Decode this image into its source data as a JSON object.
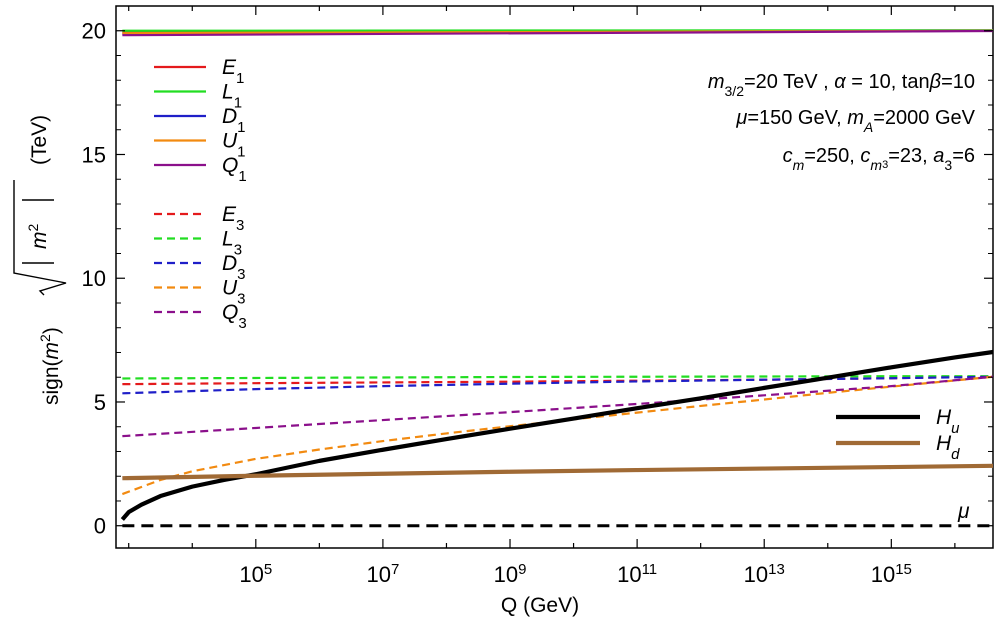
{
  "chart_data": {
    "type": "line",
    "xlabel": "Q (GeV)",
    "ylabel": {
      "prefix": "sign(",
      "m": "m",
      "sup": "2",
      "close": ")",
      "root_inner_m": "m",
      "root_inner_sup": "2",
      "unit": "(TeV)"
    },
    "x_scale": "log10",
    "x_tick_exponents": [
      5,
      7,
      9,
      11,
      13,
      15
    ],
    "x_tick_base": "10",
    "xlim_log10": [
      2.8,
      16.6
    ],
    "ylim": [
      -0.9,
      21
    ],
    "y_ticks": [
      0,
      5,
      10,
      15,
      20
    ],
    "annotation": {
      "line1": {
        "m": "m",
        "msub": "3/2",
        "rest1": "=20 TeV , ",
        "alpha": "α",
        "rest2": " = 10, tan",
        "beta": "β",
        "rest3": "=10"
      },
      "line2": {
        "mu": "μ",
        "rest1": "=150 GeV, ",
        "m": "m",
        "msub": "A",
        "rest2": "=2000 GeV"
      },
      "line3": {
        "c1": "c",
        "c1sub": "m",
        "rest1": "=250, ",
        "c2": "c",
        "c2sub": "m",
        "c2subsub": "3",
        "rest2": "=23, ",
        "a": "a",
        "asub": "3",
        "rest3": "=6"
      }
    },
    "mu_label": "μ",
    "series": [
      {
        "name": "E",
        "sub": "1",
        "color": "#e41a1c",
        "dash": "solid",
        "width": 2.2,
        "log10Q": [
          2.9,
          16.6
        ],
        "values": [
          19.93,
          20.0
        ]
      },
      {
        "name": "L",
        "sub": "1",
        "color": "#22dd22",
        "dash": "solid",
        "width": 2.2,
        "log10Q": [
          2.9,
          16.6
        ],
        "values": [
          20.0,
          20.02
        ]
      },
      {
        "name": "D",
        "sub": "1",
        "color": "#1f1fc8",
        "dash": "solid",
        "width": 2.2,
        "log10Q": [
          2.9,
          16.6
        ],
        "values": [
          19.88,
          20.0
        ]
      },
      {
        "name": "U",
        "sub": "1",
        "color": "#f28a10",
        "dash": "solid",
        "width": 2.2,
        "log10Q": [
          2.9,
          16.6
        ],
        "values": [
          19.9,
          20.0
        ]
      },
      {
        "name": "Q",
        "sub": "1",
        "color": "#8b108b",
        "dash": "solid",
        "width": 2.2,
        "log10Q": [
          2.9,
          16.6
        ],
        "values": [
          19.82,
          19.99
        ]
      },
      {
        "name": "E",
        "sub": "3",
        "color": "#e41a1c",
        "dash": "dashed",
        "width": 2.2,
        "log10Q": [
          2.9,
          5,
          7,
          9,
          11,
          13,
          15,
          16.6
        ],
        "values": [
          5.72,
          5.76,
          5.79,
          5.82,
          5.86,
          5.9,
          5.96,
          6.03
        ]
      },
      {
        "name": "L",
        "sub": "3",
        "color": "#22dd22",
        "dash": "dashed",
        "width": 2.2,
        "log10Q": [
          2.9,
          5,
          7,
          9,
          11,
          13,
          15,
          16.6
        ],
        "values": [
          5.95,
          5.97,
          5.99,
          6.01,
          6.02,
          6.03,
          6.04,
          6.04
        ]
      },
      {
        "name": "D",
        "sub": "3",
        "color": "#1f1fc8",
        "dash": "dashed",
        "width": 2.2,
        "log10Q": [
          2.9,
          5,
          7,
          9,
          11,
          13,
          15,
          16.6
        ],
        "values": [
          5.35,
          5.52,
          5.64,
          5.74,
          5.83,
          5.9,
          5.96,
          6.02
        ]
      },
      {
        "name": "U",
        "sub": "3",
        "color": "#f28a10",
        "dash": "dashed",
        "width": 2.2,
        "log10Q": [
          2.9,
          3.5,
          4,
          5,
          6,
          7,
          8,
          9,
          10,
          11,
          12,
          13,
          14,
          15,
          16.6
        ],
        "values": [
          1.28,
          1.85,
          2.2,
          2.7,
          3.08,
          3.42,
          3.73,
          4.02,
          4.3,
          4.57,
          4.84,
          5.1,
          5.37,
          5.62,
          6.02
        ]
      },
      {
        "name": "Q",
        "sub": "3",
        "color": "#8b108b",
        "dash": "dashed",
        "width": 2.2,
        "log10Q": [
          2.9,
          5,
          7,
          9,
          11,
          13,
          15,
          16.6
        ],
        "values": [
          3.62,
          3.95,
          4.27,
          4.59,
          4.92,
          5.27,
          5.64,
          6.02
        ]
      },
      {
        "name": "H",
        "sub": "u",
        "color": "#000000",
        "dash": "solid",
        "width": 4.2,
        "log10Q": [
          2.9,
          3.0,
          3.2,
          3.5,
          4.0,
          4.5,
          5.0,
          6,
          7,
          8,
          9,
          10,
          11,
          12,
          13,
          14,
          15,
          16,
          16.6
        ],
        "values": [
          0.25,
          0.55,
          0.85,
          1.2,
          1.58,
          1.85,
          2.08,
          2.62,
          3.07,
          3.5,
          3.92,
          4.33,
          4.75,
          5.15,
          5.57,
          5.98,
          6.4,
          6.8,
          7.02
        ]
      },
      {
        "name": "H",
        "sub": "d",
        "color": "#a06a35",
        "dash": "solid",
        "width": 4.2,
        "log10Q": [
          2.9,
          5,
          7,
          9,
          11,
          13,
          15,
          16.6
        ],
        "values": [
          1.92,
          2.02,
          2.1,
          2.18,
          2.25,
          2.31,
          2.37,
          2.42
        ]
      },
      {
        "name": "μ",
        "sub": "",
        "color": "#000000",
        "dash": "dashed",
        "width": 3.0,
        "log10Q": [
          2.9,
          16.6
        ],
        "values": [
          0.0,
          0.0
        ]
      }
    ],
    "legend_left_groups": [
      [
        0,
        1,
        2,
        3,
        4
      ],
      [
        5,
        6,
        7,
        8,
        9
      ]
    ],
    "legend_right": [
      10,
      11
    ]
  }
}
